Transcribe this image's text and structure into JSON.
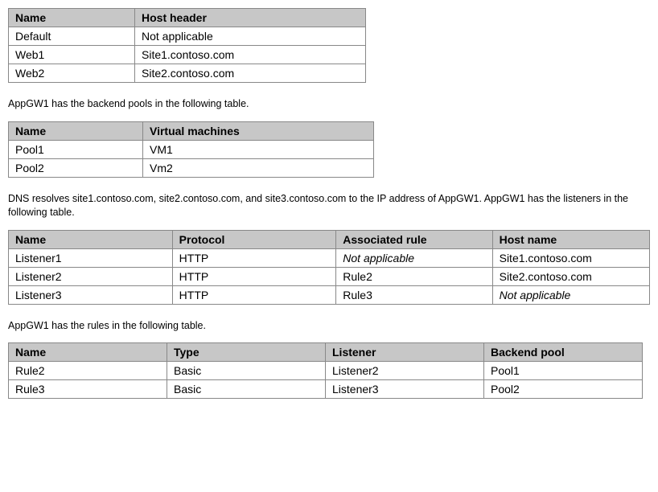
{
  "table1": {
    "columns": [
      "Name",
      "Host header"
    ],
    "rows": [
      [
        "Default",
        "Not applicable"
      ],
      [
        "Web1",
        "Site1.contoso.com"
      ],
      [
        "Web2",
        "Site2.contoso.com"
      ]
    ]
  },
  "para1": "AppGW1 has the backend pools in the following table.",
  "table2": {
    "columns": [
      "Name",
      "Virtual machines"
    ],
    "rows": [
      [
        "Pool1",
        "VM1"
      ],
      [
        "Pool2",
        "Vm2"
      ]
    ]
  },
  "para2": "DNS resolves site1.contoso.com, site2.contoso.com, and site3.contoso.com to the IP address of AppGW1. AppGW1 has the listeners in the following table.",
  "table3": {
    "columns": [
      "Name",
      "Protocol",
      "Associated rule",
      "Host name"
    ],
    "rows": [
      [
        "Listener1",
        "HTTP",
        "Not applicable",
        "Site1.contoso.com"
      ],
      [
        "Listener2",
        "HTTP",
        "Rule2",
        "Site2.contoso.com"
      ],
      [
        "Listener3",
        "HTTP",
        "Rule3",
        "Not applicable"
      ]
    ]
  },
  "para3": "AppGW1 has the rules in the following table.",
  "table4": {
    "columns": [
      "Name",
      "Type",
      "Listener",
      "Backend pool"
    ],
    "rows": [
      [
        "Rule2",
        "Basic",
        "Listener2",
        "Pool1"
      ],
      [
        "Rule3",
        "Basic",
        "Listener3",
        "Pool2"
      ]
    ]
  }
}
